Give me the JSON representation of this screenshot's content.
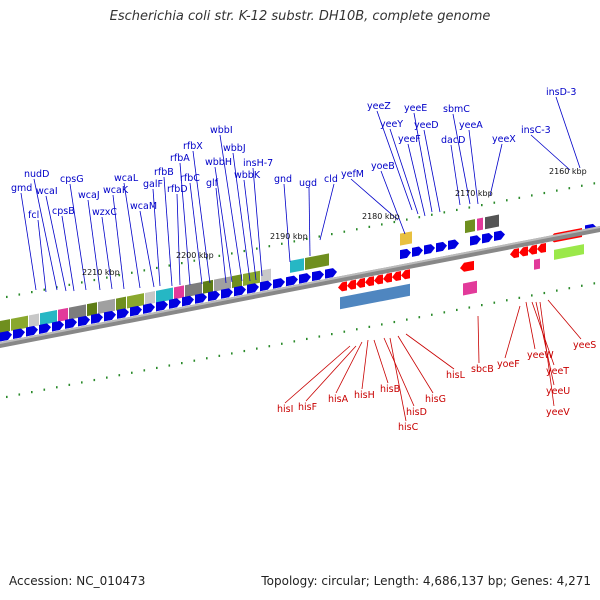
{
  "title": "Escherichia coli str. K-12 substr. DH10B, complete genome",
  "accession": "Accession: NC_010473",
  "stats": "Topology: circular; Length: 4,686,137 bp; Genes: 4,271",
  "colors": {
    "forward_gene": "#0000e0",
    "reverse_gene": "#ff0000",
    "forward_label": "#0000c8",
    "reverse_label": "#c80000",
    "backbone": "#888888",
    "tick_mark": "#2a8a2a"
  },
  "ticks": [
    "2160 kbp",
    "2170 kbp",
    "2180 kbp",
    "2190 kbp",
    "2200 kbp",
    "2210 kbp"
  ],
  "forward_labels": [
    "gmd",
    "fcl",
    "nudD",
    "wcaI",
    "cpsB",
    "cpsG",
    "wcaJ",
    "wzxC",
    "wcaK",
    "wcaL",
    "wcaM",
    "galF",
    "rfbB",
    "rfbD",
    "rfbA",
    "rfbC",
    "rfbX",
    "glf",
    "wbbH",
    "wbbI",
    "wbbJ",
    "wbbK",
    "insH-7",
    "gnd",
    "ugd",
    "cld",
    "yefM",
    "yoeB",
    "yeeZ",
    "yeeY",
    "yeeF",
    "yeeE",
    "yeeD",
    "dacD",
    "sbmC",
    "yeeA",
    "yeeX",
    "insC-3",
    "insD-3"
  ],
  "reverse_labels": [
    "hisI",
    "hisF",
    "hisA",
    "hisH",
    "hisB",
    "hisD",
    "hisC",
    "hisG",
    "hisL",
    "sbcB",
    "yoeF",
    "yeeW",
    "yeeT",
    "yeeU",
    "yeeV",
    "yeeS"
  ]
}
